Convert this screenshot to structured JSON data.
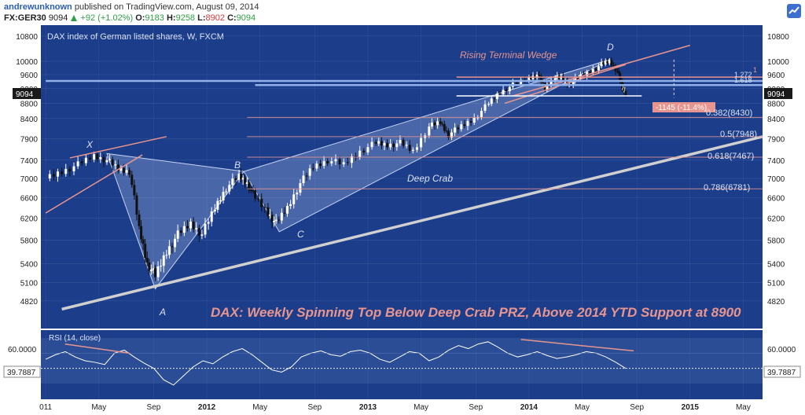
{
  "header": {
    "author": "andrewunknown",
    "published": "published on TradingView.com, August 09, 2014",
    "symbol": "FX:GER30",
    "last": "9094",
    "change": "+92 (+1.02%)",
    "open_label": "O:",
    "open": "9183",
    "high_label": "H:",
    "high": "9258",
    "low_label": "L:",
    "low": "8902",
    "close_label": "C:",
    "close": "9094"
  },
  "colors": {
    "background": "#1c3d8a",
    "pane_border": "#30528f",
    "grid": "#5a78b8",
    "text_light": "#d9e2f5",
    "pink": "#e8958f",
    "pattern_fill": "#9db4e0",
    "axis_bg": "#ffffff",
    "rsi_band": "#2a4d96"
  },
  "chart_data": [
    {
      "type": "candlestick",
      "title": "DAX index of German listed shares, W, FXCM",
      "x_ticks": [
        "011",
        "May",
        "Sep",
        "2012",
        "May",
        "Sep",
        "2013",
        "May",
        "Sep",
        "2014",
        "May",
        "Sep",
        "2015",
        "May"
      ],
      "y_ticks": [
        10800,
        10000,
        9600,
        9200,
        8800,
        8400,
        7900,
        7400,
        7000,
        6600,
        6200,
        5800,
        5400,
        5100,
        4820
      ],
      "ylim": [
        4560,
        10900
      ],
      "last_price_label": "9094",
      "approx_close_path": [
        [
          2011.0,
          7000
        ],
        [
          2011.1,
          7150
        ],
        [
          2011.2,
          7300
        ],
        [
          2011.3,
          7500
        ],
        [
          2011.38,
          7400
        ],
        [
          2011.45,
          7200
        ],
        [
          2011.52,
          7150
        ],
        [
          2011.58,
          6000
        ],
        [
          2011.63,
          5400
        ],
        [
          2011.68,
          5200
        ],
        [
          2011.75,
          5600
        ],
        [
          2011.82,
          5900
        ],
        [
          2011.9,
          6100
        ],
        [
          2011.97,
          5900
        ],
        [
          2012.05,
          6400
        ],
        [
          2012.12,
          6800
        ],
        [
          2012.2,
          7050
        ],
        [
          2012.25,
          6900
        ],
        [
          2012.3,
          6600
        ],
        [
          2012.38,
          6300
        ],
        [
          2012.43,
          6100
        ],
        [
          2012.5,
          6400
        ],
        [
          2012.58,
          6900
        ],
        [
          2012.66,
          7250
        ],
        [
          2012.75,
          7400
        ],
        [
          2012.85,
          7300
        ],
        [
          2012.95,
          7600
        ],
        [
          2013.05,
          7800
        ],
        [
          2013.12,
          7750
        ],
        [
          2013.2,
          7800
        ],
        [
          2013.28,
          7600
        ],
        [
          2013.38,
          8200
        ],
        [
          2013.45,
          8300
        ],
        [
          2013.5,
          8000
        ],
        [
          2013.58,
          8200
        ],
        [
          2013.66,
          8400
        ],
        [
          2013.75,
          8800
        ],
        [
          2013.82,
          9100
        ],
        [
          2013.9,
          9300
        ],
        [
          2014.0,
          9500
        ],
        [
          2014.05,
          9600
        ],
        [
          2014.1,
          9200
        ],
        [
          2014.15,
          9500
        ],
        [
          2014.2,
          9500
        ],
        [
          2014.25,
          9300
        ],
        [
          2014.3,
          9500
        ],
        [
          2014.38,
          9700
        ],
        [
          2014.45,
          9900
        ],
        [
          2014.5,
          10000
        ],
        [
          2014.55,
          9700
        ],
        [
          2014.58,
          9200
        ],
        [
          2014.6,
          9094
        ]
      ],
      "annotations": {
        "x_label": "X",
        "a_label": "A",
        "b_label": "B",
        "c_label": "C",
        "d_label": "D",
        "wedge": "Rising Terminal Wedge",
        "pattern": "Deep Crab",
        "drop": "-1145 (-11.4%)",
        "fib_0382": "0.382(8430)",
        "fib_05": "0.5(7948)",
        "fib_0618": "0.618(7467)",
        "fib_0786": "0.786(6781)",
        "fib_1": "1",
        "fib_1272": "1.272",
        "fib_1618": "1.618",
        "headline": "DAX: Weekly Spinning Top Below Deep Crab PRZ, Above 2014 YTD Support at 8900"
      }
    },
    {
      "type": "line",
      "title": "RSI (14, close)",
      "y_ticks": [
        60
      ],
      "y_tick_label": "60.0000",
      "last_value": "39.7887",
      "approx_values": [
        52,
        58,
        62,
        55,
        50,
        48,
        45,
        60,
        64,
        55,
        47,
        40,
        25,
        18,
        30,
        42,
        50,
        46,
        55,
        62,
        66,
        58,
        48,
        38,
        35,
        42,
        55,
        60,
        63,
        58,
        56,
        62,
        64,
        60,
        52,
        48,
        55,
        62,
        60,
        50,
        55,
        64,
        70,
        66,
        72,
        75,
        68,
        60,
        55,
        58,
        62,
        57,
        53,
        55,
        58,
        62,
        60,
        55,
        48,
        40
      ]
    }
  ]
}
